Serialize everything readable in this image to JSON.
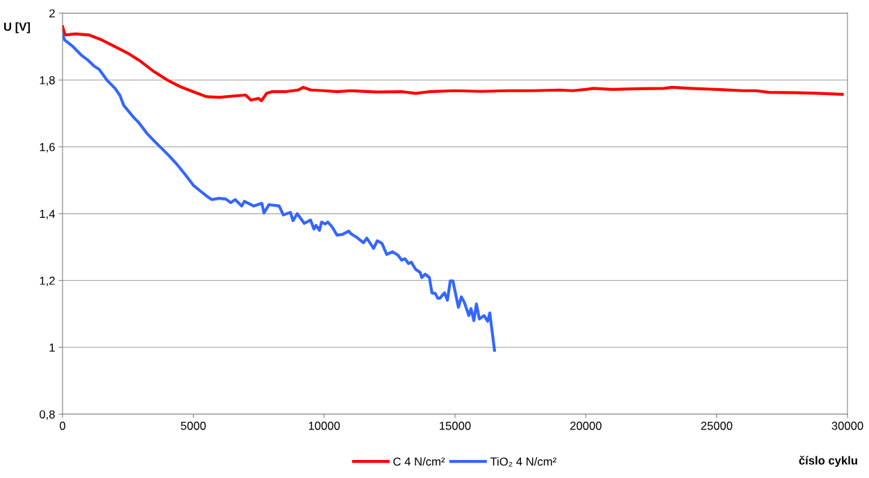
{
  "chart_data": {
    "type": "line",
    "xlabel": "číslo cyklu",
    "ylabel": "U [V]",
    "xlim": [
      0,
      30000
    ],
    "xticks": [
      0,
      5000,
      10000,
      15000,
      20000,
      25000,
      30000
    ],
    "ylim": [
      0.8,
      2
    ],
    "yticks": [
      {
        "value": 0.8,
        "label": "0,8"
      },
      1,
      {
        "value": 1.2,
        "label": "1,2"
      },
      {
        "value": 1.4,
        "label": "1,4"
      },
      {
        "value": 1.6,
        "label": "1,6"
      },
      {
        "value": 1.8,
        "label": "1,8"
      },
      2
    ],
    "grid": "y",
    "legend": "bottom",
    "marker": "none",
    "line_style": "solid",
    "series": [
      {
        "name": "C 4 N/cm²",
        "color": "#ff0000",
        "x": [
          0,
          100,
          500,
          1000,
          1500,
          2000,
          2500,
          3000,
          3500,
          4000,
          4500,
          5000,
          5500,
          6000,
          6500,
          7000,
          7200,
          7500,
          7600,
          7800,
          8000,
          8500,
          9000,
          9200,
          9500,
          10000,
          10500,
          11000,
          12000,
          13000,
          13500,
          14000,
          15000,
          16000,
          17000,
          18000,
          19000,
          19500,
          20000,
          20300,
          21000,
          22000,
          23000,
          23300,
          24000,
          25000,
          26000,
          26500,
          27000,
          28000,
          29000,
          29800
        ],
        "values": [
          1.96,
          1.935,
          1.938,
          1.935,
          1.92,
          1.9,
          1.88,
          1.855,
          1.825,
          1.8,
          1.78,
          1.765,
          1.75,
          1.748,
          1.752,
          1.755,
          1.74,
          1.745,
          1.738,
          1.76,
          1.765,
          1.765,
          1.77,
          1.778,
          1.77,
          1.768,
          1.765,
          1.768,
          1.764,
          1.765,
          1.76,
          1.765,
          1.768,
          1.766,
          1.768,
          1.768,
          1.77,
          1.768,
          1.772,
          1.775,
          1.772,
          1.774,
          1.775,
          1.778,
          1.775,
          1.772,
          1.768,
          1.768,
          1.763,
          1.762,
          1.76,
          1.757
        ]
      },
      {
        "name": "TiO₂ 4 N/cm²",
        "color": "#3366ff",
        "x": [
          0,
          80,
          400,
          740,
          980,
          1200,
          1400,
          1725,
          2000,
          2200,
          2340,
          2520,
          2700,
          2920,
          3240,
          3500,
          3770,
          4040,
          4380,
          4700,
          5000,
          5360,
          5520,
          5710,
          5970,
          6240,
          6430,
          6600,
          6850,
          6950,
          7300,
          7620,
          7700,
          7890,
          8280,
          8440,
          8710,
          8810,
          8970,
          9240,
          9480,
          9610,
          9690,
          9820,
          9900,
          10040,
          10140,
          10300,
          10490,
          10700,
          10940,
          11020,
          11230,
          11500,
          11630,
          11890,
          12030,
          12210,
          12390,
          12610,
          12820,
          12960,
          13090,
          13220,
          13330,
          13490,
          13670,
          13730,
          13860,
          14020,
          14120,
          14250,
          14340,
          14420,
          14600,
          14710,
          14820,
          14920,
          15130,
          15240,
          15350,
          15530,
          15610,
          15720,
          15820,
          15930,
          16110,
          16250,
          16330,
          16510
        ],
        "values": [
          1.936,
          1.92,
          1.9,
          1.873,
          1.859,
          1.842,
          1.832,
          1.797,
          1.776,
          1.753,
          1.724,
          1.707,
          1.69,
          1.672,
          1.639,
          1.618,
          1.597,
          1.576,
          1.547,
          1.516,
          1.485,
          1.462,
          1.452,
          1.442,
          1.446,
          1.444,
          1.433,
          1.442,
          1.423,
          1.437,
          1.423,
          1.431,
          1.402,
          1.427,
          1.423,
          1.396,
          1.404,
          1.379,
          1.4,
          1.371,
          1.381,
          1.354,
          1.365,
          1.35,
          1.375,
          1.369,
          1.375,
          1.361,
          1.336,
          1.338,
          1.348,
          1.34,
          1.33,
          1.313,
          1.327,
          1.296,
          1.319,
          1.311,
          1.278,
          1.286,
          1.276,
          1.261,
          1.265,
          1.251,
          1.255,
          1.234,
          1.224,
          1.209,
          1.219,
          1.209,
          1.163,
          1.161,
          1.147,
          1.147,
          1.163,
          1.141,
          1.199,
          1.199,
          1.12,
          1.151,
          1.136,
          1.095,
          1.116,
          1.08,
          1.13,
          1.085,
          1.095,
          1.078,
          1.103,
          0.991
        ]
      }
    ]
  }
}
